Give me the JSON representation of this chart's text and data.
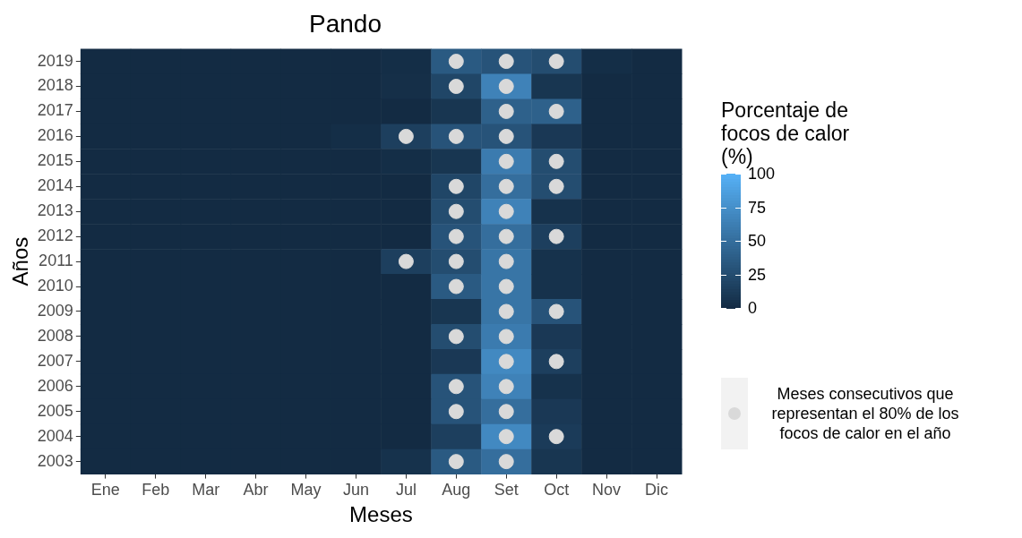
{
  "chart_data": {
    "type": "heatmap",
    "title": "Pando",
    "xlabel": "Meses",
    "ylabel": "Años",
    "clabel": "Porcentaje de focos de calor (%)",
    "categories": [
      "Ene",
      "Feb",
      "Mar",
      "Abr",
      "May",
      "Jun",
      "Jul",
      "Aug",
      "Set",
      "Oct",
      "Nov",
      "Dic"
    ],
    "y_categories": [
      "2019",
      "2018",
      "2017",
      "2016",
      "2015",
      "2014",
      "2013",
      "2012",
      "2011",
      "2010",
      "2009",
      "2008",
      "2007",
      "2006",
      "2005",
      "2004",
      "2003"
    ],
    "cells": [
      [
        0,
        0,
        0,
        0,
        0,
        0,
        2,
        35,
        30,
        25,
        2,
        0
      ],
      [
        0,
        0,
        0,
        0,
        0,
        0,
        3,
        20,
        65,
        8,
        0,
        0
      ],
      [
        0,
        0,
        0,
        0,
        0,
        0,
        0,
        8,
        40,
        40,
        0,
        0
      ],
      [
        0,
        0,
        0,
        0,
        0,
        2,
        15,
        30,
        30,
        10,
        0,
        0
      ],
      [
        0,
        0,
        0,
        0,
        0,
        0,
        2,
        8,
        60,
        25,
        0,
        0
      ],
      [
        0,
        0,
        0,
        0,
        0,
        0,
        0,
        20,
        50,
        25,
        0,
        0
      ],
      [
        0,
        0,
        0,
        0,
        0,
        0,
        0,
        25,
        65,
        5,
        0,
        0
      ],
      [
        0,
        0,
        0,
        0,
        0,
        0,
        0,
        30,
        50,
        15,
        0,
        0
      ],
      [
        0,
        0,
        0,
        0,
        0,
        0,
        15,
        25,
        55,
        5,
        0,
        0
      ],
      [
        0,
        0,
        0,
        0,
        0,
        0,
        0,
        35,
        55,
        5,
        0,
        0
      ],
      [
        0,
        0,
        0,
        0,
        0,
        0,
        0,
        8,
        55,
        30,
        0,
        0
      ],
      [
        0,
        0,
        0,
        0,
        0,
        0,
        0,
        25,
        60,
        10,
        0,
        0
      ],
      [
        0,
        0,
        0,
        0,
        0,
        0,
        0,
        10,
        70,
        15,
        0,
        0
      ],
      [
        0,
        0,
        0,
        0,
        0,
        0,
        0,
        30,
        65,
        5,
        0,
        0
      ],
      [
        0,
        0,
        0,
        0,
        0,
        0,
        0,
        30,
        50,
        10,
        0,
        0
      ],
      [
        0,
        0,
        0,
        0,
        0,
        0,
        0,
        15,
        70,
        12,
        0,
        0
      ],
      [
        0,
        0,
        0,
        0,
        0,
        0,
        5,
        35,
        50,
        8,
        0,
        0
      ]
    ],
    "clim": [
      0,
      100
    ],
    "cticks": [
      0,
      25,
      50,
      75,
      100
    ],
    "grid": false,
    "legend": "right",
    "marker": "circle",
    "series": [
      {
        "type": "scatter",
        "name": "Meses consecutivos que representan el 80% de los focos de calor en el año",
        "color": "#d9d9d9",
        "x": [
          "Aug",
          "Set",
          "Oct",
          "Aug",
          "Set",
          "Set",
          "Oct",
          "Jul",
          "Aug",
          "Set",
          "Set",
          "Oct",
          "Aug",
          "Set",
          "Oct",
          "Aug",
          "Set",
          "Aug",
          "Set",
          "Oct",
          "Jul",
          "Aug",
          "Set",
          "Aug",
          "Set",
          "Set",
          "Oct",
          "Aug",
          "Set",
          "Set",
          "Oct",
          "Aug",
          "Set",
          "Aug",
          "Set",
          "Set",
          "Oct",
          "Aug",
          "Set"
        ],
        "values": [
          0,
          0,
          0,
          1,
          1,
          2,
          2,
          3,
          3,
          3,
          4,
          4,
          5,
          5,
          5,
          6,
          6,
          7,
          7,
          7,
          8,
          8,
          8,
          9,
          9,
          10,
          10,
          11,
          11,
          12,
          12,
          13,
          13,
          14,
          14,
          15,
          15,
          16,
          16
        ]
      }
    ]
  }
}
